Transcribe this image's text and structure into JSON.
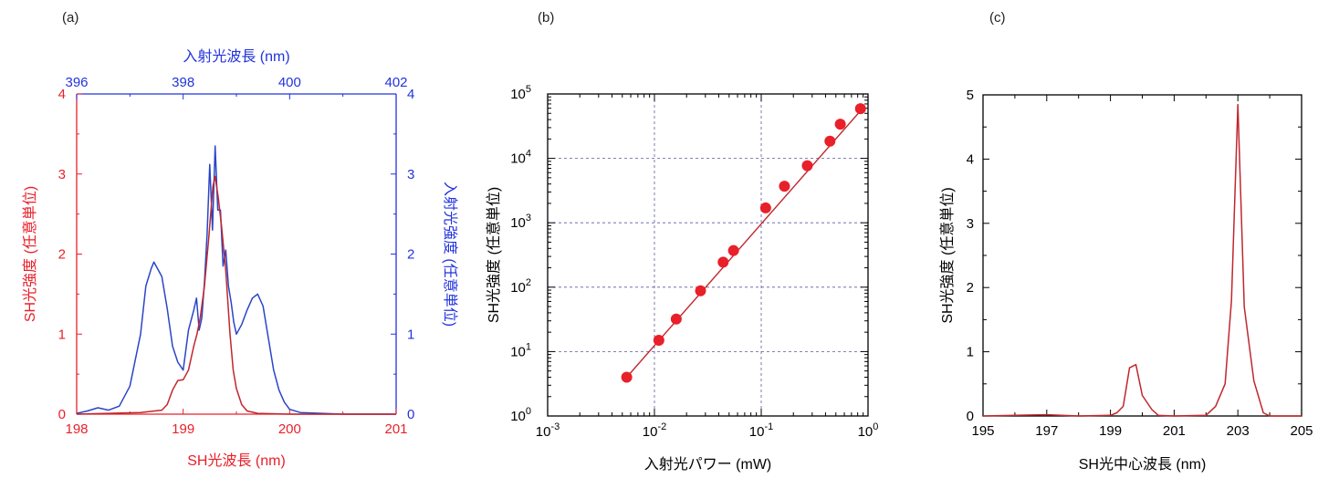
{
  "panels": {
    "a": "(a)",
    "b": "(b)",
    "c": "(c)"
  },
  "colors": {
    "red": "#e8202a",
    "blue": "#2233dd",
    "blue_line": "#2a45c8",
    "dark_red": "#c0272d",
    "grid": "#5a5aa0",
    "axis": "#000000"
  },
  "chart_data": [
    {
      "type": "line",
      "xlabel": "SH光波長 (nm)",
      "ylabel": "SH光強度 (任意単位)",
      "x_top_label": "入射光波長 (nm)",
      "y_right_label": "入射光強度 (任意単位)",
      "xlim": [
        198,
        201
      ],
      "ylim": [
        0,
        4
      ],
      "x_top_lim": [
        396,
        402
      ],
      "y_right_lim": [
        0,
        4
      ],
      "x_ticks": [
        "198",
        "199",
        "200",
        "201"
      ],
      "y_ticks": [
        "0",
        "1",
        "2",
        "3",
        "4"
      ],
      "x_top_ticks": [
        "396",
        "398",
        "400",
        "402"
      ],
      "y_right_ticks": [
        "0",
        "1",
        "2",
        "3",
        "4"
      ],
      "series": [
        {
          "axis": "bottom-left",
          "color": "#c0272d",
          "x": [
            198.0,
            198.3,
            198.6,
            198.8,
            198.85,
            198.9,
            198.95,
            199.0,
            199.05,
            199.1,
            199.13,
            199.16,
            199.2,
            199.24,
            199.28,
            199.3,
            199.33,
            199.36,
            199.4,
            199.44,
            199.47,
            199.5,
            199.55,
            199.6,
            199.7,
            200.0,
            201.0
          ],
          "y": [
            0.0,
            0.01,
            0.02,
            0.05,
            0.12,
            0.3,
            0.42,
            0.43,
            0.55,
            0.85,
            1.0,
            1.2,
            1.6,
            2.2,
            2.85,
            2.97,
            2.7,
            2.35,
            1.8,
            1.0,
            0.55,
            0.32,
            0.12,
            0.04,
            0.01,
            0.0,
            0.0
          ]
        },
        {
          "axis": "top-right",
          "color": "#2a45c8",
          "x": [
            396.0,
            396.2,
            396.4,
            396.6,
            396.8,
            397.0,
            397.2,
            397.3,
            397.4,
            397.45,
            397.5,
            397.6,
            397.7,
            397.8,
            397.9,
            398.0,
            398.1,
            398.2,
            398.25,
            398.3,
            398.35,
            398.4,
            398.45,
            398.5,
            398.55,
            398.6,
            398.65,
            398.7,
            398.75,
            398.8,
            398.85,
            398.9,
            398.95,
            399.0,
            399.1,
            399.2,
            399.3,
            399.4,
            399.5,
            399.6,
            399.7,
            399.8,
            399.9,
            400.0,
            400.2,
            401.0,
            402.0
          ],
          "y": [
            0.01,
            0.04,
            0.08,
            0.05,
            0.1,
            0.35,
            1.0,
            1.6,
            1.82,
            1.9,
            1.84,
            1.72,
            1.32,
            0.85,
            0.65,
            0.55,
            1.05,
            1.3,
            1.45,
            1.05,
            1.2,
            1.65,
            2.25,
            3.12,
            2.3,
            3.35,
            2.55,
            2.55,
            1.85,
            2.05,
            1.6,
            1.4,
            1.15,
            1.0,
            1.12,
            1.3,
            1.45,
            1.5,
            1.35,
            0.95,
            0.55,
            0.3,
            0.15,
            0.06,
            0.02,
            0.0,
            0.0
          ]
        }
      ]
    },
    {
      "type": "scatter",
      "xlabel": "入射光パワー (mW)",
      "ylabel": "SH光強度 (任意単位)",
      "x_scale": "log",
      "y_scale": "log",
      "xlim": [
        0.001,
        1
      ],
      "ylim": [
        1,
        100000
      ],
      "grid": true,
      "x_tick_bases": [
        "10",
        "10",
        "10",
        "10"
      ],
      "x_tick_exps": [
        "-3",
        "-2",
        "-1",
        "0"
      ],
      "y_tick_bases": [
        "10",
        "10",
        "10",
        "10",
        "10",
        "10"
      ],
      "y_tick_exps": [
        "0",
        "1",
        "2",
        "3",
        "4",
        "5"
      ],
      "points": {
        "x": [
          0.0055,
          0.011,
          0.016,
          0.027,
          0.044,
          0.055,
          0.11,
          0.165,
          0.27,
          0.44,
          0.55,
          0.85
        ],
        "y": [
          4,
          15,
          32,
          88,
          245,
          370,
          1700,
          3700,
          7700,
          18500,
          34000,
          59000
        ]
      },
      "fit_line": {
        "x": [
          0.0055,
          0.9
        ],
        "y": [
          4,
          61000
        ]
      }
    },
    {
      "type": "line",
      "xlabel": "SH光中心波長 (nm)",
      "ylabel": "SH光強度 (任意単位)",
      "xlim": [
        195,
        205
      ],
      "ylim": [
        0,
        5
      ],
      "x_ticks": [
        "195",
        "197",
        "199",
        "201",
        "203",
        "205"
      ],
      "y_ticks": [
        "0",
        "1",
        "2",
        "3",
        "4",
        "5"
      ],
      "series": [
        {
          "color": "#c0272d",
          "x": [
            195.0,
            196.0,
            197.0,
            198.0,
            199.0,
            199.2,
            199.4,
            199.6,
            199.8,
            200.0,
            200.3,
            200.5,
            201.0,
            202.0,
            202.3,
            202.6,
            202.8,
            203.0,
            203.2,
            203.5,
            203.8,
            204.0,
            205.0
          ],
          "y": [
            0.0,
            0.01,
            0.02,
            0.0,
            0.01,
            0.05,
            0.15,
            0.75,
            0.8,
            0.32,
            0.1,
            0.01,
            0.0,
            0.01,
            0.15,
            0.5,
            1.8,
            4.85,
            1.7,
            0.55,
            0.05,
            0.0,
            0.0
          ]
        }
      ]
    }
  ]
}
